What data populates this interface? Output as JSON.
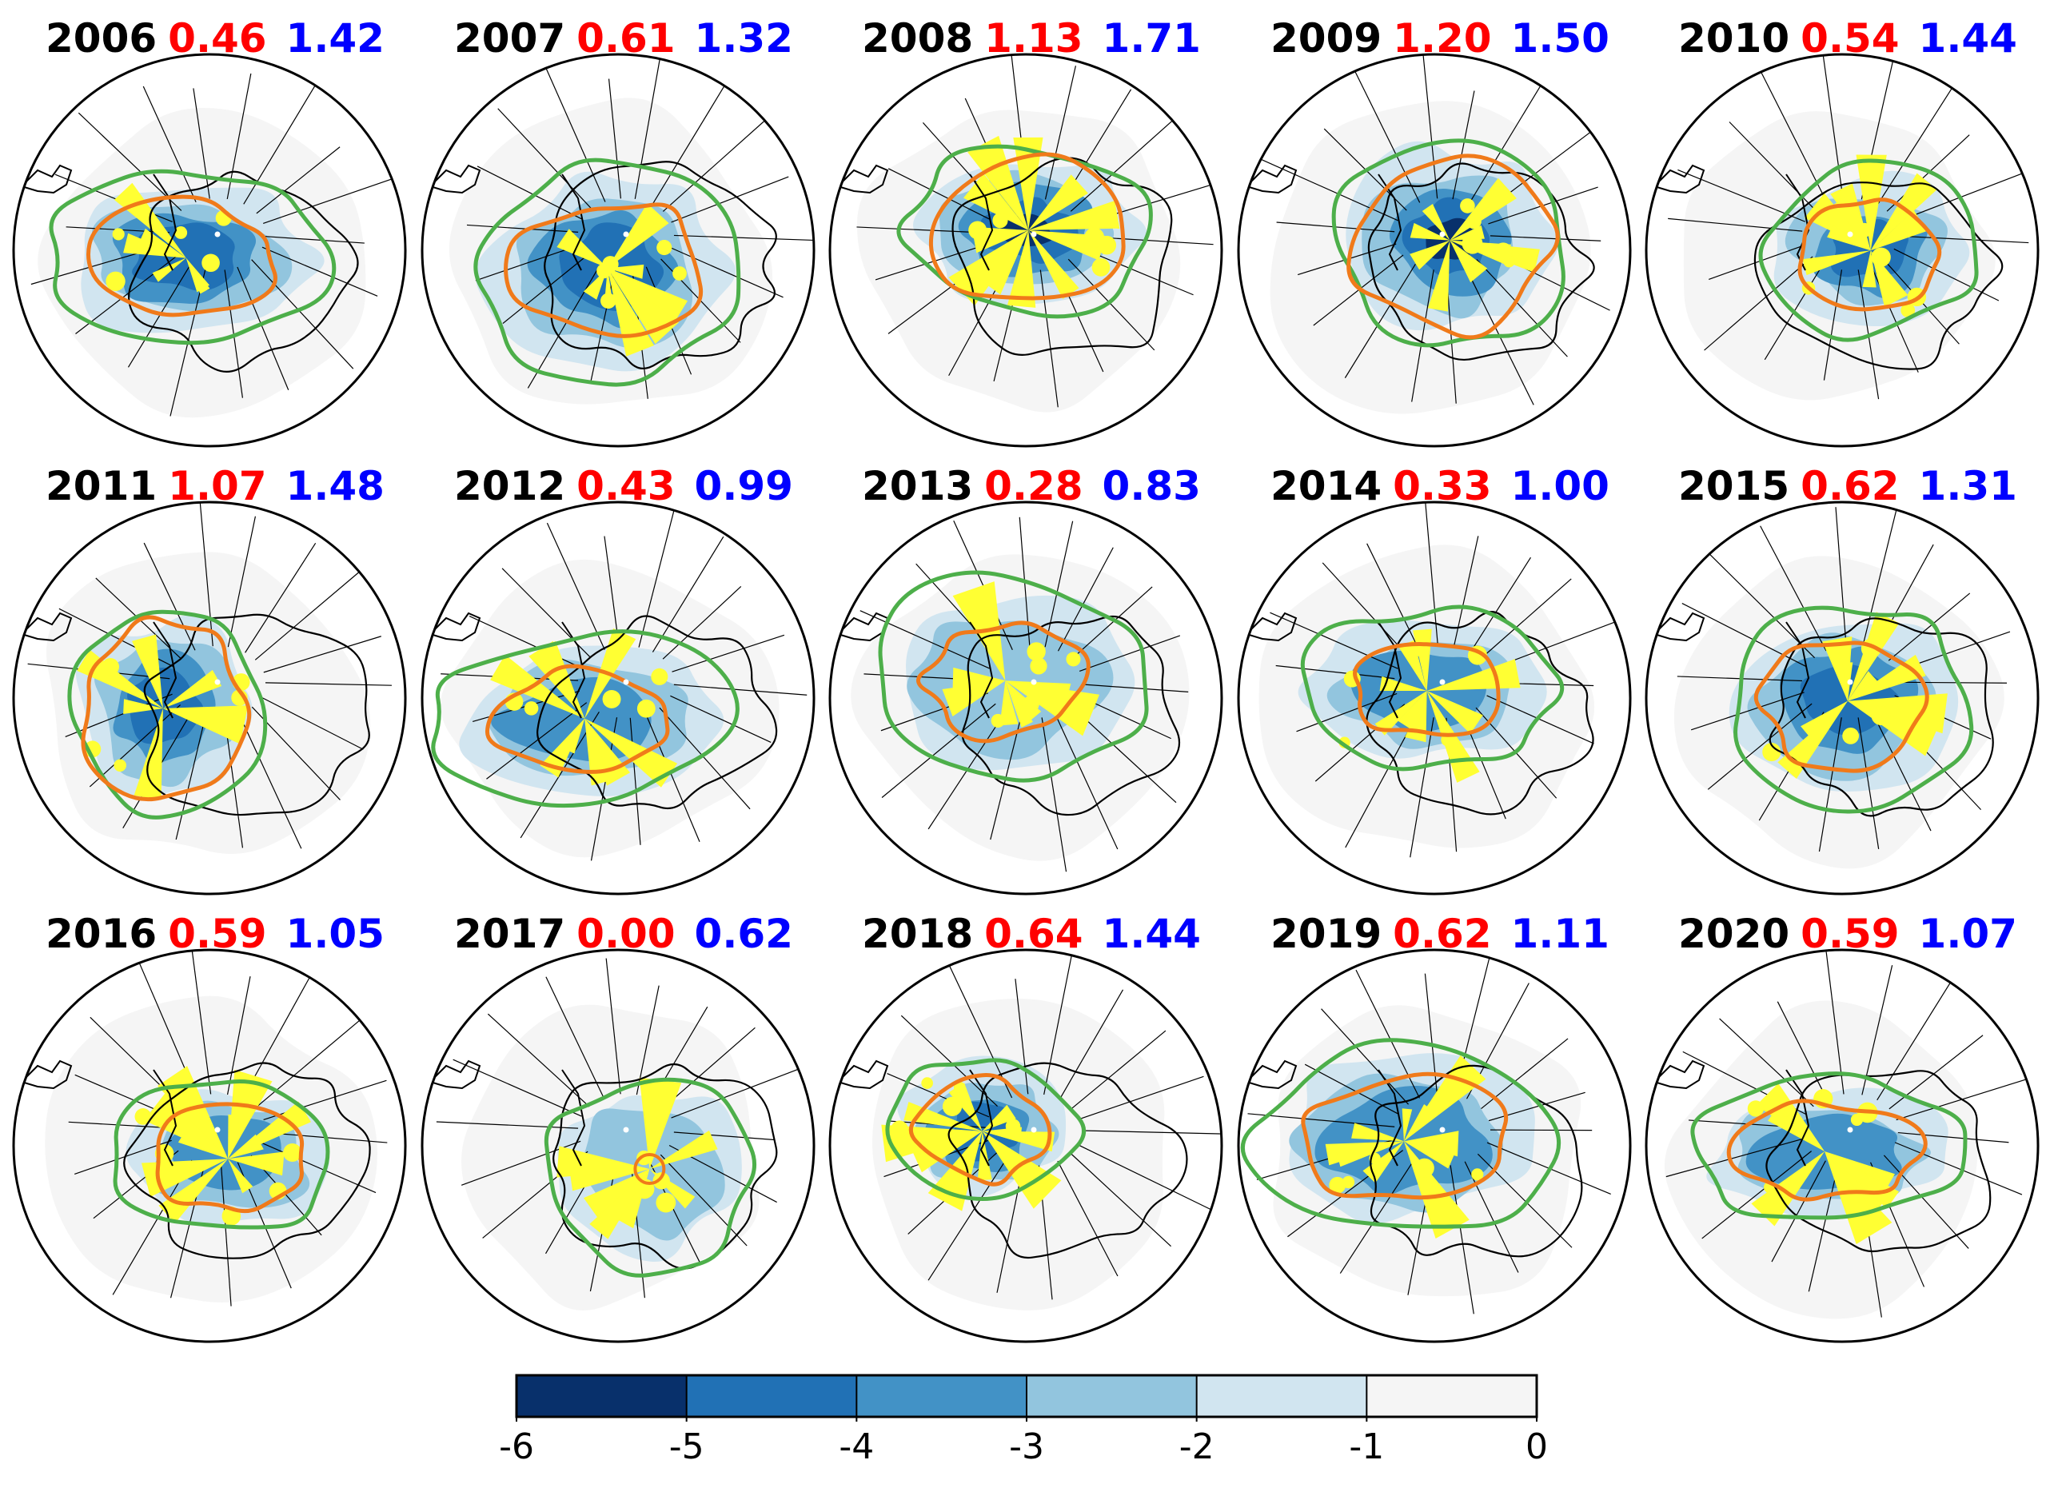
{
  "chart_data": {
    "type": "polar-map-grid",
    "description_free": true,
    "panels": [
      {
        "year": "2006",
        "red_value": "0.46",
        "blue_value": "1.42"
      },
      {
        "year": "2007",
        "red_value": "0.61",
        "blue_value": "1.32"
      },
      {
        "year": "2008",
        "red_value": "1.13",
        "blue_value": "1.71"
      },
      {
        "year": "2009",
        "red_value": "1.20",
        "blue_value": "1.50"
      },
      {
        "year": "2010",
        "red_value": "0.54",
        "blue_value": "1.44"
      },
      {
        "year": "2011",
        "red_value": "1.07",
        "blue_value": "1.48"
      },
      {
        "year": "2012",
        "red_value": "0.43",
        "blue_value": "0.99"
      },
      {
        "year": "2013",
        "red_value": "0.28",
        "blue_value": "0.83"
      },
      {
        "year": "2014",
        "red_value": "0.33",
        "blue_value": "1.00"
      },
      {
        "year": "2015",
        "red_value": "0.62",
        "blue_value": "1.31"
      },
      {
        "year": "2016",
        "red_value": "0.59",
        "blue_value": "1.05"
      },
      {
        "year": "2017",
        "red_value": "0.00",
        "blue_value": "0.62"
      },
      {
        "year": "2018",
        "red_value": "0.64",
        "blue_value": "1.44"
      },
      {
        "year": "2019",
        "red_value": "0.62",
        "blue_value": "1.11"
      },
      {
        "year": "2020",
        "red_value": "0.59",
        "blue_value": "1.07"
      }
    ],
    "colorbar": {
      "ticks": [
        "-6",
        "-5",
        "-4",
        "-3",
        "-2",
        "-1",
        "0"
      ],
      "range": [
        -6,
        0
      ],
      "bins": [
        {
          "from": -6,
          "to": -5,
          "color": "#08306b"
        },
        {
          "from": -5,
          "to": -4,
          "color": "#2171b5"
        },
        {
          "from": -4,
          "to": -3,
          "color": "#4292c6"
        },
        {
          "from": -3,
          "to": -2,
          "color": "#92c5de"
        },
        {
          "from": -2,
          "to": -1,
          "color": "#d1e5f0"
        },
        {
          "from": -1,
          "to": 0,
          "color": "#f5f5f5"
        }
      ]
    },
    "overlay_colors": {
      "stipple": "#ffff33",
      "contour_outer": "#4daf4a",
      "contour_inner": "#f07a1a",
      "coastline": "#000000"
    },
    "title_colors": {
      "year": "#000000",
      "red_value": "#ff0000",
      "blue_value": "#0000ff"
    }
  }
}
